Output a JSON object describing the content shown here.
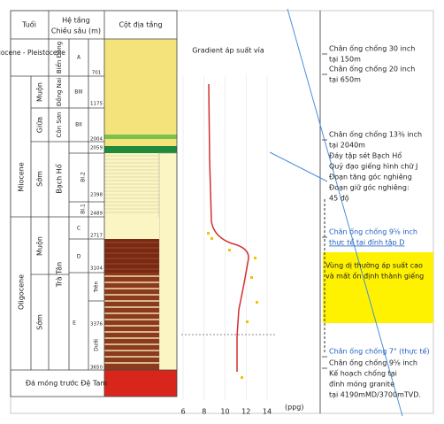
{
  "header": {
    "age": "Tuổi",
    "formation": "Hệ tầng",
    "depth": "Chiều sâu (m)",
    "column": "Cột địa tầng"
  },
  "ages": {
    "pliocene": "Pliocene - Pleistocene",
    "miocene": "Miocene",
    "oligocene": "Oligocene",
    "late_miocene": "Muộn",
    "middle_miocene": "Giữa",
    "early_miocene": "Sớm",
    "late_oligocene": "Muộn",
    "early_oligocene": "Sớm",
    "basement": "Đá móng trước Đệ Tam"
  },
  "formations": {
    "bien_dong": "Biển Đông",
    "dong_nai": "Đồng Nai",
    "con_son": "Côn Sơn",
    "bach_ho": "Bạch Hổ",
    "tra_tan": "Trà Tân"
  },
  "units": [
    "A",
    "BIII",
    "BII",
    "BI.2",
    "BI.1",
    "C",
    "D",
    "E",
    "Trên",
    "Dưới"
  ],
  "depths": [
    701,
    1175,
    2004,
    2059,
    2398,
    2489,
    2717,
    3104,
    3376,
    3650
  ],
  "gradient": {
    "title": "Gradient áp suất vỉa",
    "xticks": [
      6,
      8,
      10,
      12,
      14
    ],
    "unit": "(ppg)"
  },
  "annotations": {
    "casing_30": [
      "Chân ống chống 30 inch",
      "tại 150m"
    ],
    "casing_20": [
      "Chân ống chống 20 inch",
      "tại 650m"
    ],
    "casing_13": [
      "Chân ống chống 13⅜ inch",
      "tại 2040m",
      "Đáy tập sét Bạch Hổ",
      "Quỹ đạo giếng hình chữ J",
      "Đoạn tăng góc nghiêng",
      "Đoạn giữ góc nghiêng:",
      "45 độ"
    ],
    "casing_9_actual": [
      "Chân ống chống 9⅝ inch",
      "thực tế tại đỉnh tập D"
    ],
    "zone": [
      "Vùng dị thường áp suất cao",
      "và mất ổn định thành giếng"
    ],
    "casing_7": [
      "Chân ống chống 7\" (thực tế)"
    ],
    "casing_9_plan": [
      "Chân ống chống 9⅝ inch",
      "Kế hoạch chống tại",
      "đỉnh móng granite",
      "tại 4190mMD/3700mTVD."
    ]
  }
}
